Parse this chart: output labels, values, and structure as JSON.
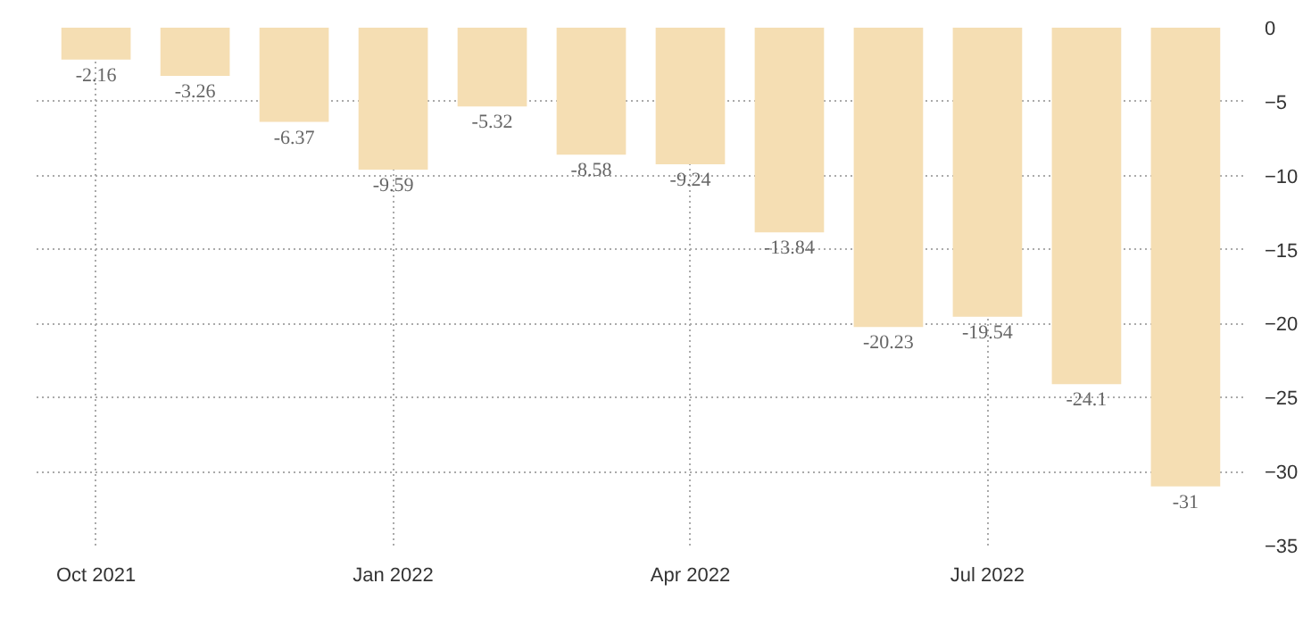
{
  "chart_data": {
    "type": "bar",
    "categories": [
      "Oct 2021",
      null,
      null,
      "Jan 2022",
      null,
      null,
      "Apr 2022",
      null,
      null,
      "Jul 2022",
      null,
      null
    ],
    "values": [
      -2.16,
      -3.26,
      -6.37,
      -9.59,
      -5.32,
      -8.58,
      -9.24,
      -13.84,
      -20.23,
      -19.54,
      -24.1,
      -31
    ],
    "color": "#f5deb3",
    "ylim": [
      -35,
      0
    ],
    "yticks": [
      0,
      -5,
      -10,
      -15,
      -20,
      -25,
      -30,
      -35
    ],
    "grid": true,
    "data_labels": true
  }
}
